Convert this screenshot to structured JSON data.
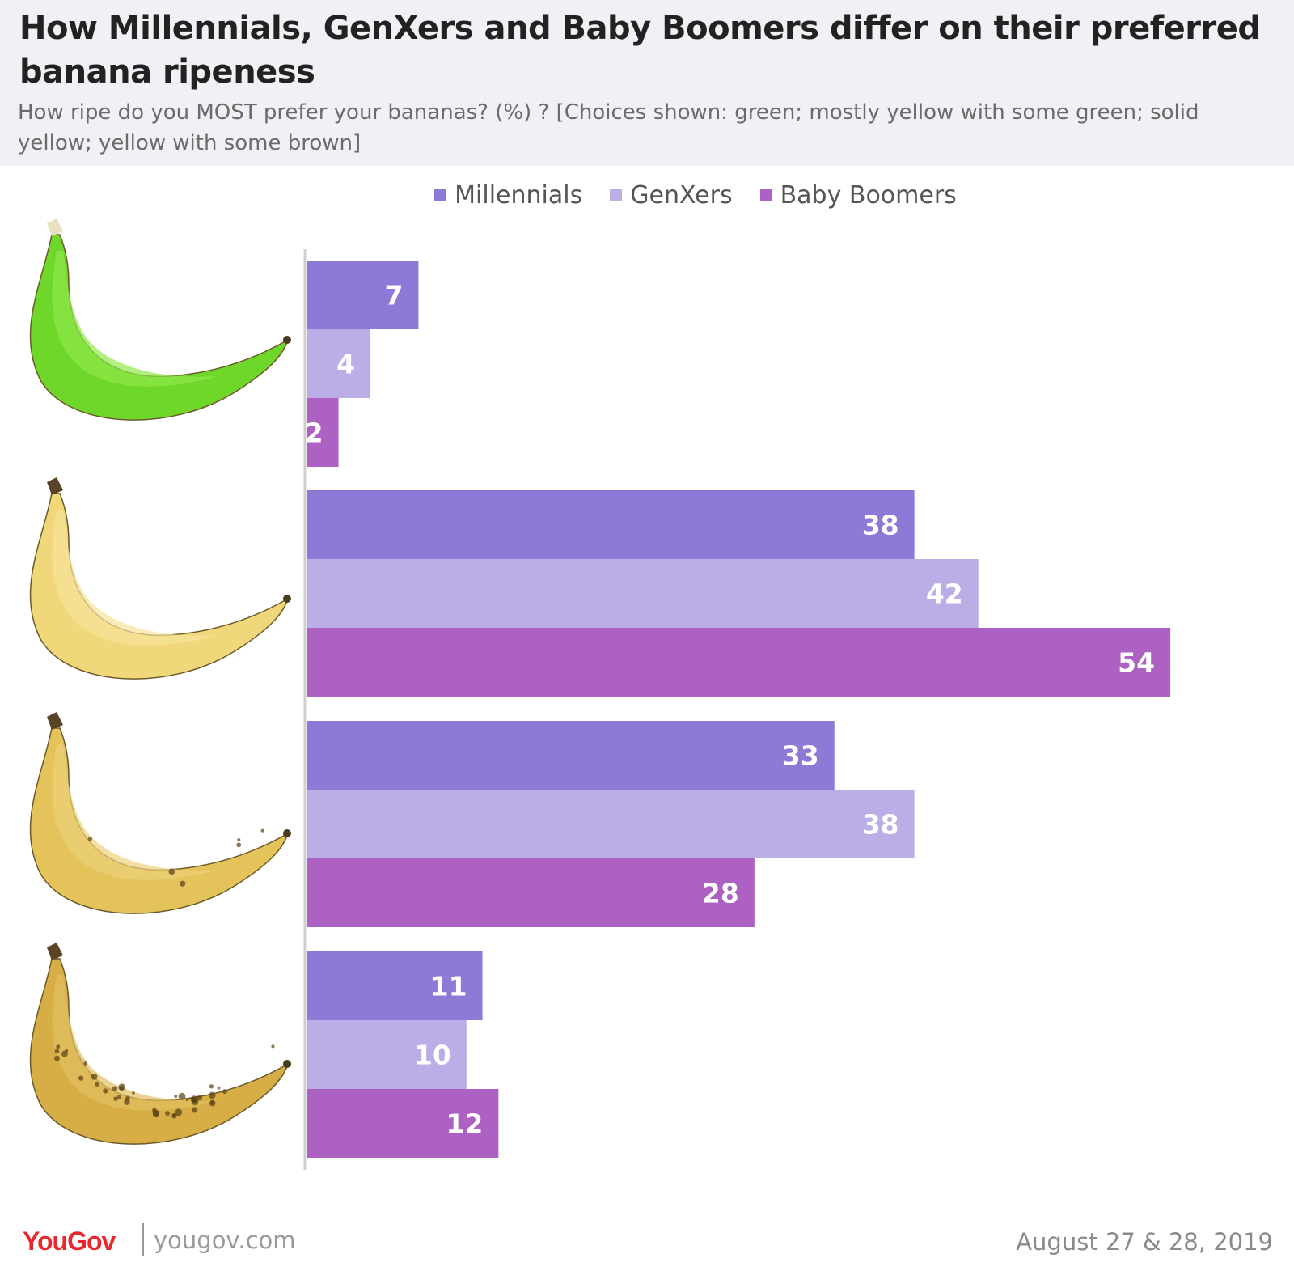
{
  "header": {
    "title": "How Millennials, GenXers and Baby Boomers differ on their preferred banana ripeness",
    "subtitle": "How ripe do you MOST prefer your bananas? (%)  ? [Choices shown: green; mostly yellow with some green; solid yellow; yellow with some brown]"
  },
  "legend": {
    "items": [
      {
        "label": "Millennials",
        "color": "#8e7ad6"
      },
      {
        "label": "GenXers",
        "color": "#bbaee6"
      },
      {
        "label": "Baby Boomers",
        "color": "#ad61c2"
      }
    ]
  },
  "chart_data": {
    "type": "bar",
    "orientation": "horizontal",
    "title": "How Millennials, GenXers and Baby Boomers differ on their preferred banana ripeness",
    "categories": [
      "green",
      "mostly yellow with some green",
      "solid yellow",
      "yellow with some brown"
    ],
    "series": [
      {
        "name": "Millennials",
        "color": "#8e7ad6",
        "values": [
          7,
          38,
          33,
          11
        ]
      },
      {
        "name": "GenXers",
        "color": "#bbaee6",
        "values": [
          4,
          42,
          38,
          10
        ]
      },
      {
        "name": "Baby Boomers",
        "color": "#ad61c2",
        "values": [
          2,
          54,
          28,
          12
        ]
      }
    ],
    "category_images": [
      "green-banana",
      "yellow-banana-green-tips",
      "solid-yellow-banana",
      "brown-spotted-banana"
    ],
    "xlim": [
      0,
      54
    ],
    "grid": false,
    "legend_position": "top-center",
    "data_labels": true
  },
  "footer": {
    "logo": "YouGov",
    "url": "yougov.com",
    "date": "August 27 & 28, 2019"
  }
}
